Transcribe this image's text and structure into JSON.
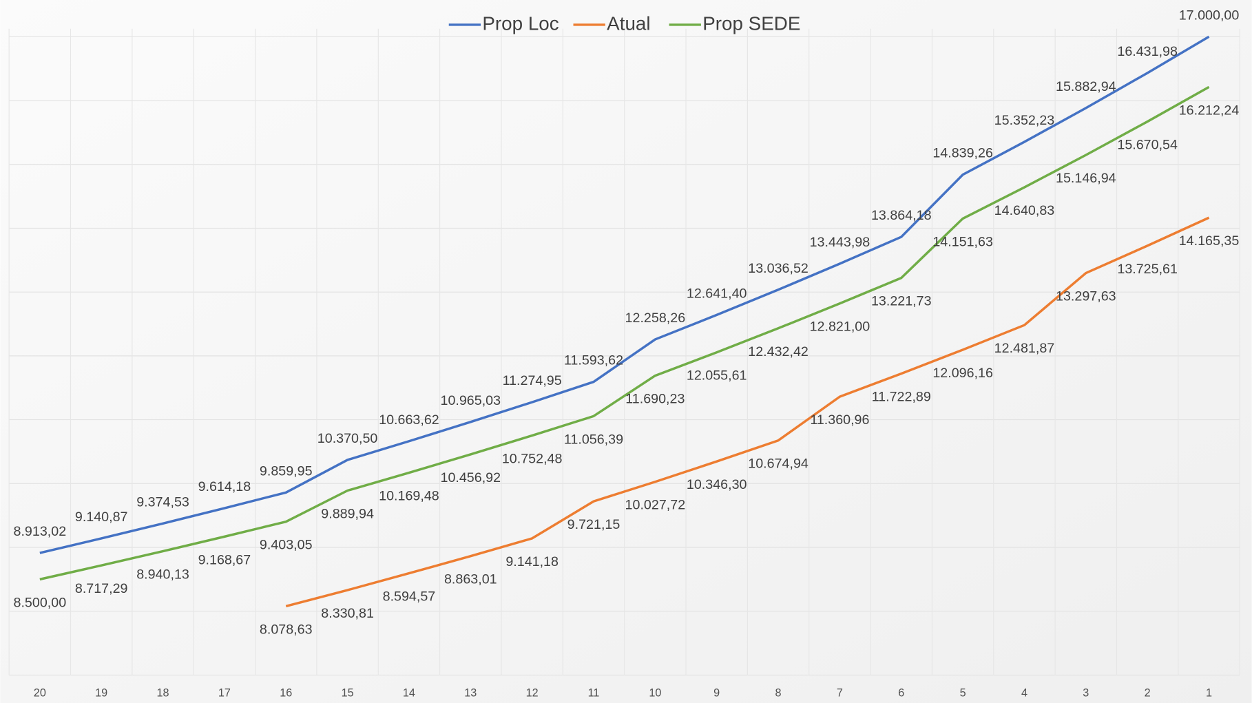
{
  "chart_data": {
    "type": "line",
    "categories": [
      "20",
      "19",
      "18",
      "17",
      "16",
      "15",
      "14",
      "13",
      "12",
      "11",
      "10",
      "9",
      "8",
      "7",
      "6",
      "5",
      "4",
      "3",
      "2",
      "1"
    ],
    "series": [
      {
        "name": "Prop Loc",
        "color": "#4472c4",
        "values": [
          8913.02,
          9140.87,
          9374.53,
          9614.18,
          9859.95,
          10370.5,
          10663.62,
          10965.03,
          11274.95,
          11593.62,
          12258.26,
          12641.4,
          13036.52,
          13443.98,
          13864.18,
          14839.26,
          15352.23,
          15882.94,
          16431.98,
          17000.0
        ],
        "value_labels": [
          "8.913,02",
          "9.140,87",
          "9.374,53",
          "9.614,18",
          "9.859,95",
          "10.370,50",
          "10.663,62",
          "10.965,03",
          "11.274,95",
          "11.593,62",
          "12.258,26",
          "12.641,40",
          "13.036,52",
          "13.443,98",
          "13.864,18",
          "14.839,26",
          "15.352,23",
          "15.882,94",
          "16.431,98",
          "17.000,00"
        ]
      },
      {
        "name": "Atual",
        "color": "#ed7d31",
        "values": [
          null,
          null,
          null,
          null,
          8078.63,
          8330.81,
          8594.57,
          8863.01,
          9141.18,
          9721.15,
          10027.72,
          10346.3,
          10674.94,
          11360.96,
          11722.89,
          12096.16,
          12481.87,
          13297.63,
          13725.61,
          14165.35
        ],
        "value_labels": [
          null,
          null,
          null,
          null,
          "8.078,63",
          "8.330,81",
          "8.594,57",
          "8.863,01",
          "9.141,18",
          "9.721,15",
          "10.027,72",
          "10.346,30",
          "10.674,94",
          "11.360,96",
          "11.722,89",
          "12.096,16",
          "12.481,87",
          "13.297,63",
          "13.725,61",
          "14.165,35"
        ]
      },
      {
        "name": "Prop SEDE",
        "color": "#70ad47",
        "values": [
          8500.0,
          8717.29,
          8940.13,
          9168.67,
          9403.05,
          9889.94,
          10169.48,
          10456.92,
          10752.48,
          11056.39,
          11690.23,
          12055.61,
          12432.42,
          12821.0,
          13221.73,
          14151.63,
          14640.83,
          15146.94,
          15670.54,
          16212.24
        ],
        "value_labels": [
          "8.500,00",
          "8.717,29",
          "8.940,13",
          "9.168,67",
          "9.403,05",
          "9.889,94",
          "10.169,48",
          "10.456,92",
          "10.752,48",
          "11.056,39",
          "11.690,23",
          "12.055,61",
          "12.432,42",
          "12.821,00",
          "13.221,73",
          "14.151,63",
          "14.640,83",
          "15.146,94",
          "15.670,54",
          "16.212,24"
        ]
      }
    ],
    "ylim": [
      7000,
      17000
    ],
    "yticks": [
      7000,
      8000,
      9000,
      10000,
      11000,
      12000,
      13000,
      14000,
      15000,
      16000,
      17000
    ],
    "grid": true,
    "legend": "top"
  }
}
